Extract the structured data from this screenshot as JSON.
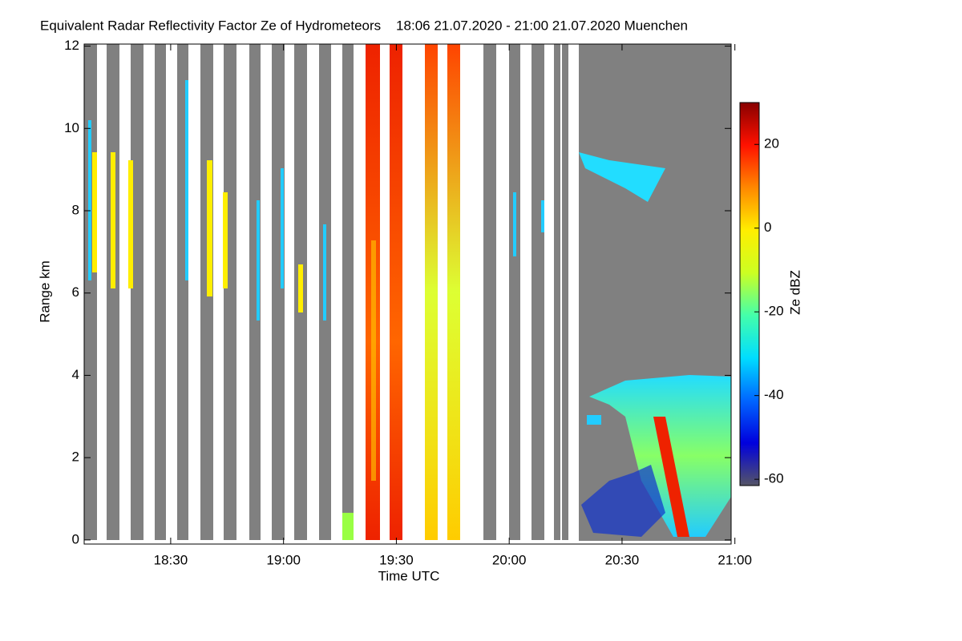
{
  "chart_data": {
    "type": "heatmap",
    "title": "Equivalent Radar Reflectivity Factor Ze of Hydrometeors    18:06 21.07.2020 - 21:00 21.07.2020 Muenchen",
    "x_label": "Time UTC",
    "y_label": "Range km",
    "xlim": [
      1087,
      1259
    ],
    "xticks": [
      {
        "value": 1110,
        "label": "18:30"
      },
      {
        "value": 1140,
        "label": "19:00"
      },
      {
        "value": 1170,
        "label": "19:30"
      },
      {
        "value": 1200,
        "label": "20:00"
      },
      {
        "value": 1230,
        "label": "20:30"
      },
      {
        "value": 1260,
        "label": "21:00"
      }
    ],
    "ylim": [
      -0.1,
      12.05
    ],
    "yticks": [
      0,
      2,
      4,
      6,
      8,
      10,
      12
    ],
    "colorbar": {
      "label": "Ze dBZ",
      "lim": [
        -61.5,
        30
      ],
      "ticks": [
        20,
        0,
        -20,
        -40,
        -60
      ],
      "colors": [
        "#555566",
        "#0000dd",
        "#0066ff",
        "#00ddff",
        "#44ffaa",
        "#ccff22",
        "#ffee00",
        "#ff8800",
        "#ff1100",
        "#880000"
      ]
    }
  }
}
